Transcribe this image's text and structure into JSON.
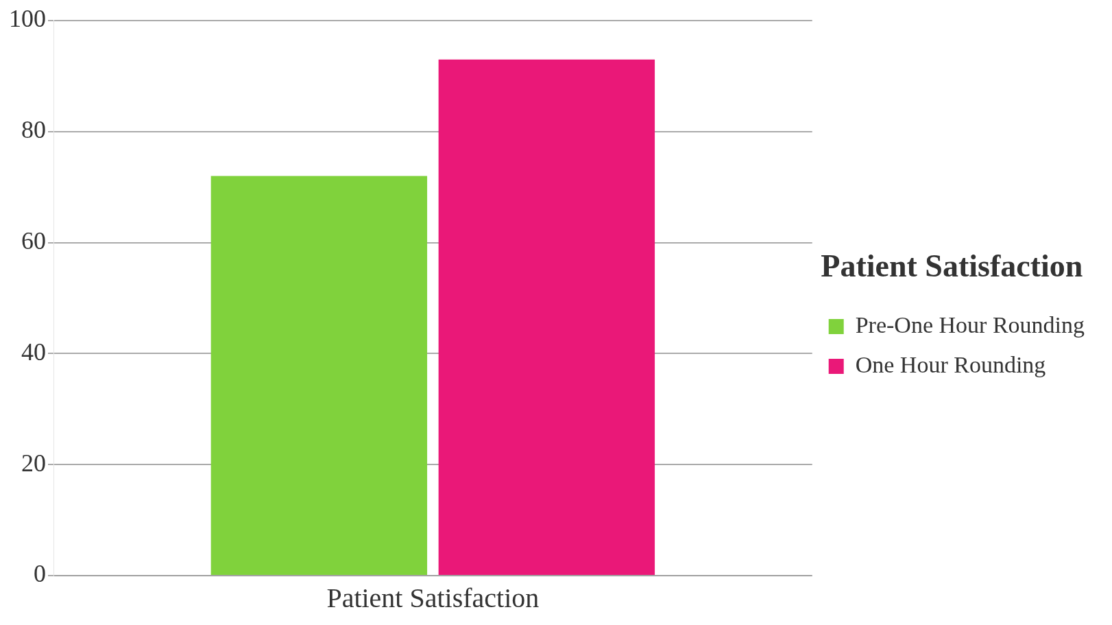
{
  "chart_data": {
    "type": "bar",
    "categories": [
      "Patient Satisfaction"
    ],
    "series": [
      {
        "name": "Pre-One Hour Rounding",
        "color": "#80d23c",
        "values": [
          72
        ]
      },
      {
        "name": "One Hour Rounding",
        "color": "#ea1878",
        "values": [
          93
        ]
      }
    ],
    "ylim": [
      0,
      100
    ],
    "yticks": [
      0,
      20,
      40,
      60,
      80,
      100
    ],
    "grid": "y",
    "legend": "right",
    "legend_title": "Patient Satisfaction"
  }
}
